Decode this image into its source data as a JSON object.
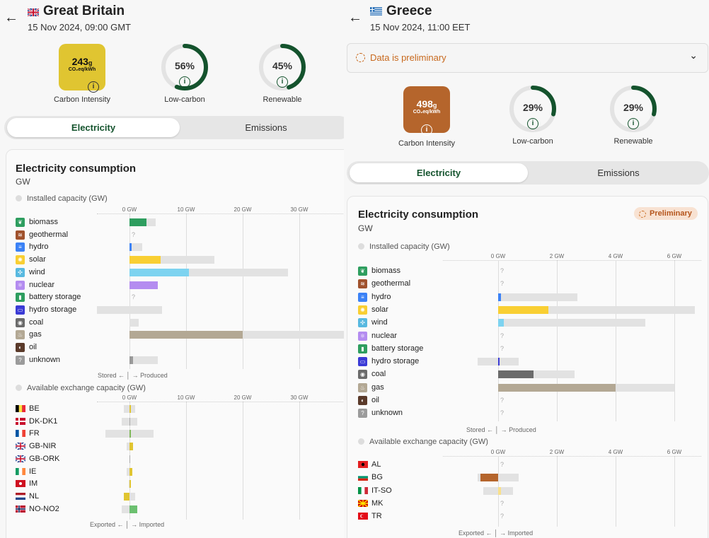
{
  "gb": {
    "title": "Great Britain",
    "date": "15 Nov 2024, 09:00 GMT",
    "carbon_intensity": {
      "value": "243",
      "value_unit": "g",
      "unit": "CO₂eq/kWh",
      "label": "Carbon Intensity",
      "color": "#e0c531"
    },
    "low_carbon": {
      "value": "56%",
      "label": "Low-carbon",
      "fraction": 0.56
    },
    "renewable": {
      "value": "45%",
      "label": "Renewable",
      "fraction": 0.45
    },
    "tabs": {
      "electricity": "Electricity",
      "emissions": "Emissions"
    },
    "card": {
      "title": "Electricity consumption",
      "unit": "GW",
      "installed_label": "Installed capacity (GW)",
      "exchange_label": "Available exchange capacity (GW)",
      "ticks": [
        "0 GW",
        "10 GW",
        "20 GW",
        "30 GW"
      ],
      "footer_prod": {
        "left": "Stored",
        "right": "Produced"
      },
      "footer_exch": {
        "left": "Exported",
        "right": "Imported"
      }
    },
    "production": [
      {
        "name": "biomass",
        "icon": "leaf-icon",
        "color": "#2e9e5f",
        "value": 3.0,
        "capacity": 4.6
      },
      {
        "name": "geothermal",
        "icon": "geothermal-icon",
        "color": "#a0522d",
        "value": null,
        "capacity": null
      },
      {
        "name": "hydro",
        "icon": "water-icon",
        "color": "#3b82f6",
        "value": 0.4,
        "capacity": 2.2
      },
      {
        "name": "solar",
        "icon": "sun-icon",
        "color": "#f9cf33",
        "value": 5.5,
        "capacity": 15.0
      },
      {
        "name": "wind",
        "icon": "wind-icon",
        "color": "#7dd3f0",
        "value": 10.5,
        "capacity": 28.0
      },
      {
        "name": "nuclear",
        "icon": "atom-icon",
        "color": "#b48cf0",
        "value": 5.0,
        "capacity": 5.0
      },
      {
        "name": "battery storage",
        "icon": "battery-icon",
        "color": "#2e9e5f",
        "value": null,
        "capacity": null
      },
      {
        "name": "hydro storage",
        "icon": "hydro-storage-icon",
        "color": "#3b3bd6",
        "value": 0,
        "capacity": 5.8,
        "store": 5.8
      },
      {
        "name": "coal",
        "icon": "coal-icon",
        "color": "#6b6b6b",
        "value": 0,
        "capacity": 1.6
      },
      {
        "name": "gas",
        "icon": "flame-icon",
        "color": "#b3a894",
        "value": 20.0,
        "capacity": 38.0
      },
      {
        "name": "oil",
        "icon": "oil-drop-icon",
        "color": "#5a3a2a",
        "value": null,
        "capacity": 0
      },
      {
        "name": "unknown",
        "icon": "question-icon",
        "color": "#999999",
        "value": 0.6,
        "capacity": 5.0
      }
    ],
    "exchange": [
      {
        "code": "BE",
        "value": 0.2,
        "cap_exp": 1.0,
        "cap_imp": 1.0,
        "bar_color": "#e0c531"
      },
      {
        "code": "DK-DK1",
        "value": 0,
        "cap_exp": 1.4,
        "cap_imp": 1.4,
        "bar_color": "#e0c531"
      },
      {
        "code": "FR",
        "value": 0.2,
        "cap_exp": 4.2,
        "cap_imp": 4.2,
        "bar_color": "#7fb85a"
      },
      {
        "code": "GB-NIR",
        "value": 0.6,
        "cap_exp": 0.5,
        "cap_imp": 0.5,
        "bar_color": "#e0c531"
      },
      {
        "code": "GB-ORK",
        "value": 0,
        "cap_exp": 0,
        "cap_imp": 0,
        "bar_color": "#e0c531"
      },
      {
        "code": "IE",
        "value": 0.5,
        "cap_exp": 0.5,
        "cap_imp": 0.5,
        "bar_color": "#e0c531"
      },
      {
        "code": "IM",
        "value": 0.1,
        "cap_exp": 0.1,
        "cap_imp": 0.1,
        "bar_color": "#e0c531"
      },
      {
        "code": "NL",
        "value": -1.0,
        "cap_exp": 1.0,
        "cap_imp": 1.0,
        "bar_color": "#e0c531"
      },
      {
        "code": "NO-NO2",
        "value": 1.4,
        "cap_exp": 1.4,
        "cap_imp": 1.4,
        "bar_color": "#6cc070"
      }
    ]
  },
  "gr": {
    "title": "Greece",
    "date": "15 Nov 2024, 11:00 EET",
    "preliminary": "Data is preliminary",
    "badge": "Preliminary",
    "carbon_intensity": {
      "value": "498",
      "value_unit": "g",
      "unit": "CO₂eq/kWh",
      "label": "Carbon Intensity",
      "color": "#b5652c"
    },
    "low_carbon": {
      "value": "29%",
      "label": "Low-carbon",
      "fraction": 0.29
    },
    "renewable": {
      "value": "29%",
      "label": "Renewable",
      "fraction": 0.29
    },
    "tabs": {
      "electricity": "Electricity",
      "emissions": "Emissions"
    },
    "card": {
      "title": "Electricity consumption",
      "unit": "GW",
      "installed_label": "Installed capacity (GW)",
      "exchange_label": "Available exchange capacity (GW)",
      "ticks": [
        "0 GW",
        "2 GW",
        "4 GW",
        "6 GW"
      ],
      "footer_prod": {
        "left": "Stored",
        "right": "Produced"
      },
      "footer_exch": {
        "left": "Exported",
        "right": "Imported"
      }
    },
    "production": [
      {
        "name": "biomass",
        "icon": "leaf-icon",
        "color": "#2e9e5f",
        "value": null,
        "capacity": null
      },
      {
        "name": "geothermal",
        "icon": "geothermal-icon",
        "color": "#a0522d",
        "value": null,
        "capacity": null
      },
      {
        "name": "hydro",
        "icon": "water-icon",
        "color": "#3b82f6",
        "value": 0.1,
        "capacity": 2.7
      },
      {
        "name": "solar",
        "icon": "sun-icon",
        "color": "#f9cf33",
        "value": 1.7,
        "capacity": 6.7
      },
      {
        "name": "wind",
        "icon": "wind-icon",
        "color": "#7dd3f0",
        "value": 0.2,
        "capacity": 5.0
      },
      {
        "name": "nuclear",
        "icon": "atom-icon",
        "color": "#b48cf0",
        "value": null,
        "capacity": null
      },
      {
        "name": "battery storage",
        "icon": "battery-icon",
        "color": "#2e9e5f",
        "value": null,
        "capacity": null
      },
      {
        "name": "hydro storage",
        "icon": "hydro-storage-icon",
        "color": "#3b3bd6",
        "value": 0.05,
        "capacity": 0.7,
        "store": 0.7
      },
      {
        "name": "coal",
        "icon": "coal-icon",
        "color": "#6b6b6b",
        "value": 1.2,
        "capacity": 2.6
      },
      {
        "name": "gas",
        "icon": "flame-icon",
        "color": "#b3a894",
        "value": 4.0,
        "capacity": 6.0
      },
      {
        "name": "oil",
        "icon": "oil-drop-icon",
        "color": "#5a3a2a",
        "value": null,
        "capacity": null
      },
      {
        "name": "unknown",
        "icon": "question-icon",
        "color": "#999999",
        "value": null,
        "capacity": null
      }
    ],
    "exchange": [
      {
        "code": "AL",
        "value": null,
        "cap_exp": 0,
        "cap_imp": 0,
        "bar_color": "#b5652c"
      },
      {
        "code": "BG",
        "value": -0.6,
        "cap_exp": 0.7,
        "cap_imp": 0.7,
        "bar_color": "#b5652c"
      },
      {
        "code": "IT-SO",
        "value": 0.1,
        "cap_exp": 0.5,
        "cap_imp": 0.5,
        "bar_color": "#f9e08a"
      },
      {
        "code": "MK",
        "value": null,
        "cap_exp": 0,
        "cap_imp": 0,
        "bar_color": "#b5652c"
      },
      {
        "code": "TR",
        "value": null,
        "cap_exp": 0,
        "cap_imp": 0,
        "bar_color": "#b5652c"
      }
    ]
  }
}
